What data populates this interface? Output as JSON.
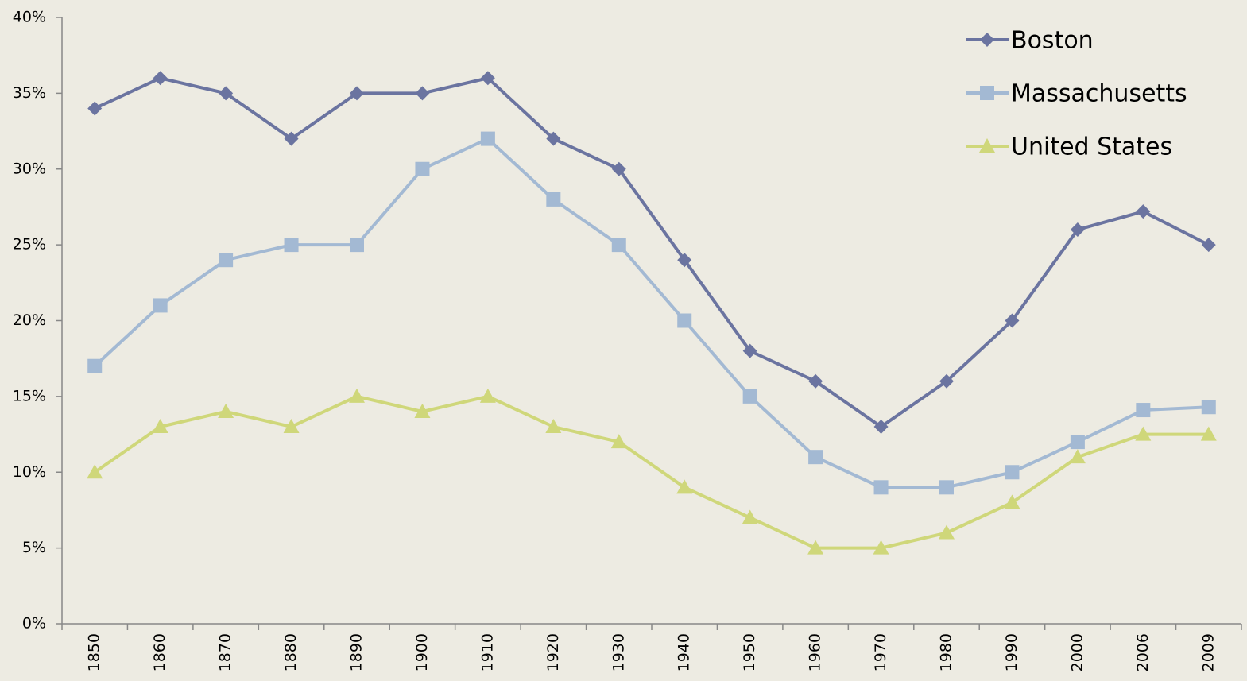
{
  "chart_data": {
    "type": "line",
    "categories": [
      "1850",
      "1860",
      "1870",
      "1880",
      "1890",
      "1900",
      "1910",
      "1920",
      "1930",
      "1940",
      "1950",
      "1960",
      "1970",
      "1980",
      "1990",
      "2000",
      "2006",
      "2009"
    ],
    "series": [
      {
        "name": "Boston",
        "color": "#6b74a0",
        "marker": "diamond",
        "values": [
          34,
          36,
          35,
          32,
          35,
          35,
          36,
          32,
          30,
          24,
          18,
          16,
          13,
          16,
          20,
          26,
          27.2,
          25
        ]
      },
      {
        "name": "Massachusetts",
        "color": "#a3b9d3",
        "marker": "square",
        "values": [
          17,
          21,
          24,
          25,
          25,
          30,
          32,
          28,
          25,
          20,
          15,
          11,
          9,
          9,
          10,
          12,
          14.1,
          14.3
        ]
      },
      {
        "name": "United States",
        "color": "#cfd77a",
        "marker": "triangle",
        "values": [
          10,
          13,
          14,
          13,
          15,
          14,
          15,
          13,
          12,
          9,
          7,
          5,
          5,
          6,
          8,
          11,
          12.5,
          12.5
        ]
      }
    ],
    "ylim": [
      0,
      40
    ],
    "yticks": [
      {
        "value": 0,
        "label": "0%"
      },
      {
        "value": 5,
        "label": "5%"
      },
      {
        "value": 10,
        "label": "10%"
      },
      {
        "value": 15,
        "label": "15%"
      },
      {
        "value": 20,
        "label": "20%"
      },
      {
        "value": 25,
        "label": "25%"
      },
      {
        "value": 30,
        "label": "30%"
      },
      {
        "value": 35,
        "label": "35%"
      },
      {
        "value": 40,
        "label": "40%"
      }
    ],
    "legend": "top-right"
  }
}
